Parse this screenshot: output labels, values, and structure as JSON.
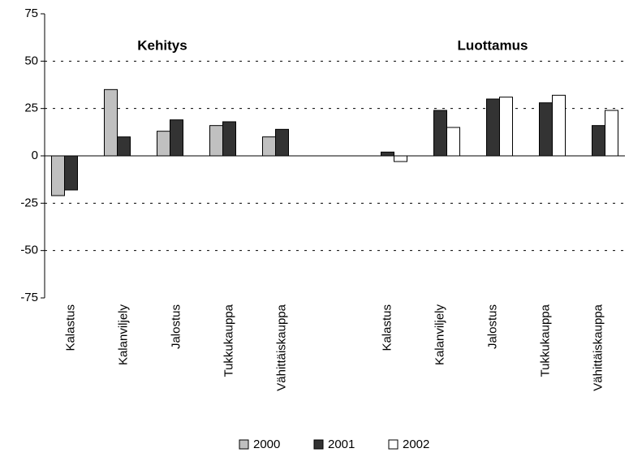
{
  "chart_data": {
    "type": "bar",
    "annotations": [
      "Kehitys",
      "Luottamus"
    ],
    "categories": [
      "Kalastus",
      "Kalanviljely",
      "Jalostus",
      "Tukkukauppa",
      "Vähittäiskauppa",
      null,
      "Kalastus",
      "Kalanviljely",
      "Jalostus",
      "Tukkukauppa",
      "Vähittäiskauppa"
    ],
    "series": [
      {
        "name": "2000",
        "color": "#c0c0c0",
        "values": [
          -21,
          35,
          13,
          16,
          10,
          null,
          null,
          null,
          null,
          null,
          null
        ]
      },
      {
        "name": "2001",
        "color": "#333333",
        "values": [
          -18,
          10,
          19,
          18,
          14,
          null,
          2,
          24,
          30,
          28,
          16
        ]
      },
      {
        "name": "2002",
        "color": "#ffffff",
        "values": [
          null,
          null,
          null,
          null,
          null,
          null,
          -3,
          15,
          31,
          32,
          24
        ]
      }
    ],
    "ylim": [
      -75,
      75
    ],
    "yticks": [
      -75,
      -50,
      -25,
      0,
      25,
      50,
      75
    ],
    "grid": true,
    "legend": "bottom"
  }
}
